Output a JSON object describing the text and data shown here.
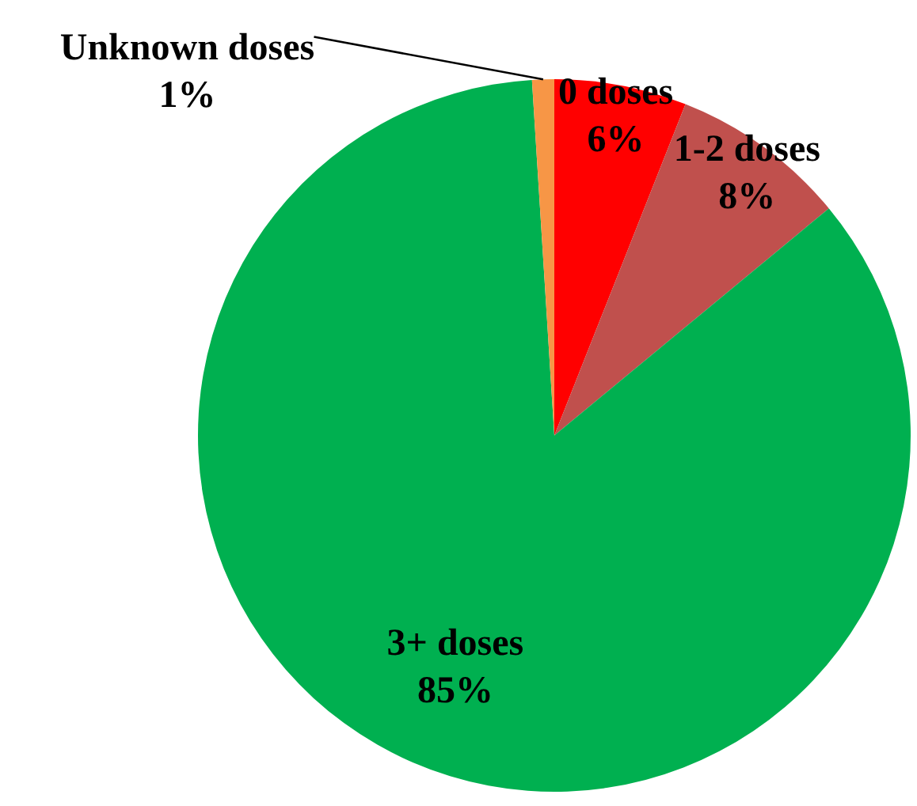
{
  "chart_data": {
    "type": "pie",
    "categories": [
      "0 doses",
      "1-2 doses",
      "3+ doses",
      "Unknown doses"
    ],
    "values": [
      6,
      8,
      85,
      1
    ],
    "colors": [
      "#ff0000",
      "#c0504d",
      "#00b050",
      "#f79646"
    ],
    "value_labels": [
      "6%",
      "8%",
      "85%",
      "1%"
    ]
  }
}
